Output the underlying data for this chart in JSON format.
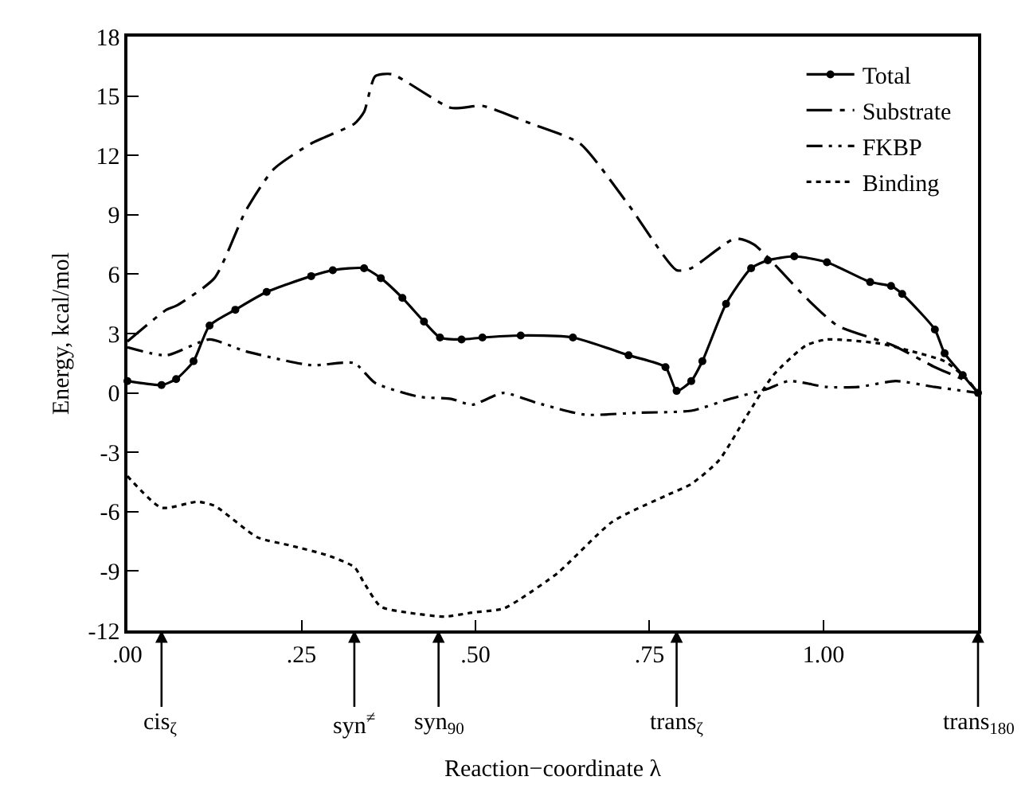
{
  "chart_data": {
    "type": "line",
    "xlabel": "Reaction−coordinate λ",
    "ylabel": "Energy, kcal/mol",
    "xlim": [
      0,
      1.222
    ],
    "ylim": [
      -12,
      18
    ],
    "xticks": [
      {
        "value": 0,
        "label": ".00"
      },
      {
        "value": 0.25,
        "label": ".25"
      },
      {
        "value": 0.5,
        "label": ".50"
      },
      {
        "value": 0.75,
        "label": ".75"
      },
      {
        "value": 1.0,
        "label": "1.00"
      }
    ],
    "yticks": [
      -12,
      -9,
      -6,
      -3,
      0,
      3,
      6,
      9,
      12,
      15,
      18
    ],
    "legend": "top right",
    "series": [
      {
        "name": "Total",
        "color": "#000000",
        "marker": "circle",
        "line_style": "solid",
        "x": [
          0,
          0.049,
          0.07,
          0.095,
          0.118,
          0.155,
          0.2,
          0.264,
          0.295,
          0.34,
          0.364,
          0.395,
          0.426,
          0.449,
          0.48,
          0.51,
          0.565,
          0.64,
          0.72,
          0.773,
          0.789,
          0.81,
          0.826,
          0.86,
          0.896,
          0.92,
          0.958,
          1.005,
          1.067,
          1.097,
          1.113,
          1.16,
          1.174,
          1.2,
          1.222
        ],
        "values": [
          0.6,
          0.4,
          0.7,
          1.6,
          3.4,
          4.2,
          5.1,
          5.9,
          6.2,
          6.3,
          5.8,
          4.8,
          3.6,
          2.8,
          2.7,
          2.8,
          2.9,
          2.8,
          1.9,
          1.3,
          0.1,
          0.6,
          1.6,
          4.5,
          6.3,
          6.7,
          6.9,
          6.6,
          5.6,
          5.4,
          5.0,
          3.2,
          2.0,
          0.9,
          0
        ]
      },
      {
        "name": "Substrate",
        "color": "#000000",
        "marker": "none",
        "line_style": "dashdot",
        "x": [
          0,
          0.056,
          0.07,
          0.125,
          0.17,
          0.21,
          0.264,
          0.326,
          0.34,
          0.356,
          0.38,
          0.465,
          0.51,
          0.565,
          0.588,
          0.65,
          0.72,
          0.789,
          0.81,
          0.873,
          0.9,
          0.975,
          1.02,
          1.1,
          1.16,
          1.21,
          1.222
        ],
        "values": [
          2.6,
          4.2,
          4.4,
          5.8,
          9.2,
          11.3,
          12.6,
          13.6,
          14.2,
          16.0,
          16.1,
          14.4,
          14.5,
          13.8,
          13.5,
          12.6,
          9.5,
          6.2,
          6.3,
          7.8,
          7.5,
          4.8,
          3.4,
          2.4,
          1.3,
          0.5,
          0
        ]
      },
      {
        "name": "FKBP",
        "color": "#000000",
        "marker": "none",
        "line_style": "dashdotdot",
        "x": [
          0,
          0.056,
          0.118,
          0.17,
          0.264,
          0.326,
          0.356,
          0.42,
          0.465,
          0.495,
          0.54,
          0.588,
          0.657,
          0.733,
          0.81,
          0.866,
          0.919,
          0.95,
          1.005,
          1.05,
          1.104,
          1.16,
          1.222
        ],
        "values": [
          2.3,
          1.9,
          2.7,
          2.1,
          1.4,
          1.5,
          0.5,
          -0.2,
          -0.3,
          -0.6,
          0.0,
          -0.5,
          -1.1,
          -1.0,
          -0.9,
          -0.3,
          0.2,
          0.6,
          0.3,
          0.3,
          0.6,
          0.3,
          0
        ]
      },
      {
        "name": "Binding",
        "color": "#000000",
        "marker": "none",
        "line_style": "dotted",
        "x": [
          0,
          0.049,
          0.1,
          0.125,
          0.187,
          0.233,
          0.287,
          0.326,
          0.34,
          0.364,
          0.403,
          0.456,
          0.495,
          0.54,
          0.565,
          0.618,
          0.697,
          0.773,
          0.81,
          0.85,
          0.889,
          0.928,
          0.975,
          1.005,
          1.08,
          1.127,
          1.174,
          1.206,
          1.222
        ],
        "values": [
          -4.2,
          -5.8,
          -5.5,
          -5.7,
          -7.3,
          -7.7,
          -8.2,
          -8.8,
          -9.6,
          -10.8,
          -11.1,
          -11.3,
          -11.1,
          -10.9,
          -10.4,
          -9.1,
          -6.5,
          -5.2,
          -4.6,
          -3.4,
          -1.2,
          0.9,
          2.4,
          2.7,
          2.5,
          2.1,
          1.6,
          0.7,
          0
        ]
      }
    ],
    "ref_lines": [
      {
        "axis": "x",
        "value": 0.049,
        "label": "cis$_{ζ}$"
      },
      {
        "axis": "x",
        "value": 0.326,
        "label": "syn$^{≠}$"
      },
      {
        "axis": "x",
        "value": 0.447,
        "label": "syn$_{90}$"
      },
      {
        "axis": "x",
        "value": 0.789,
        "label": "trans$_{ζ}$"
      },
      {
        "axis": "x",
        "value": 1.222,
        "label": "trans$_{180}$"
      }
    ]
  }
}
